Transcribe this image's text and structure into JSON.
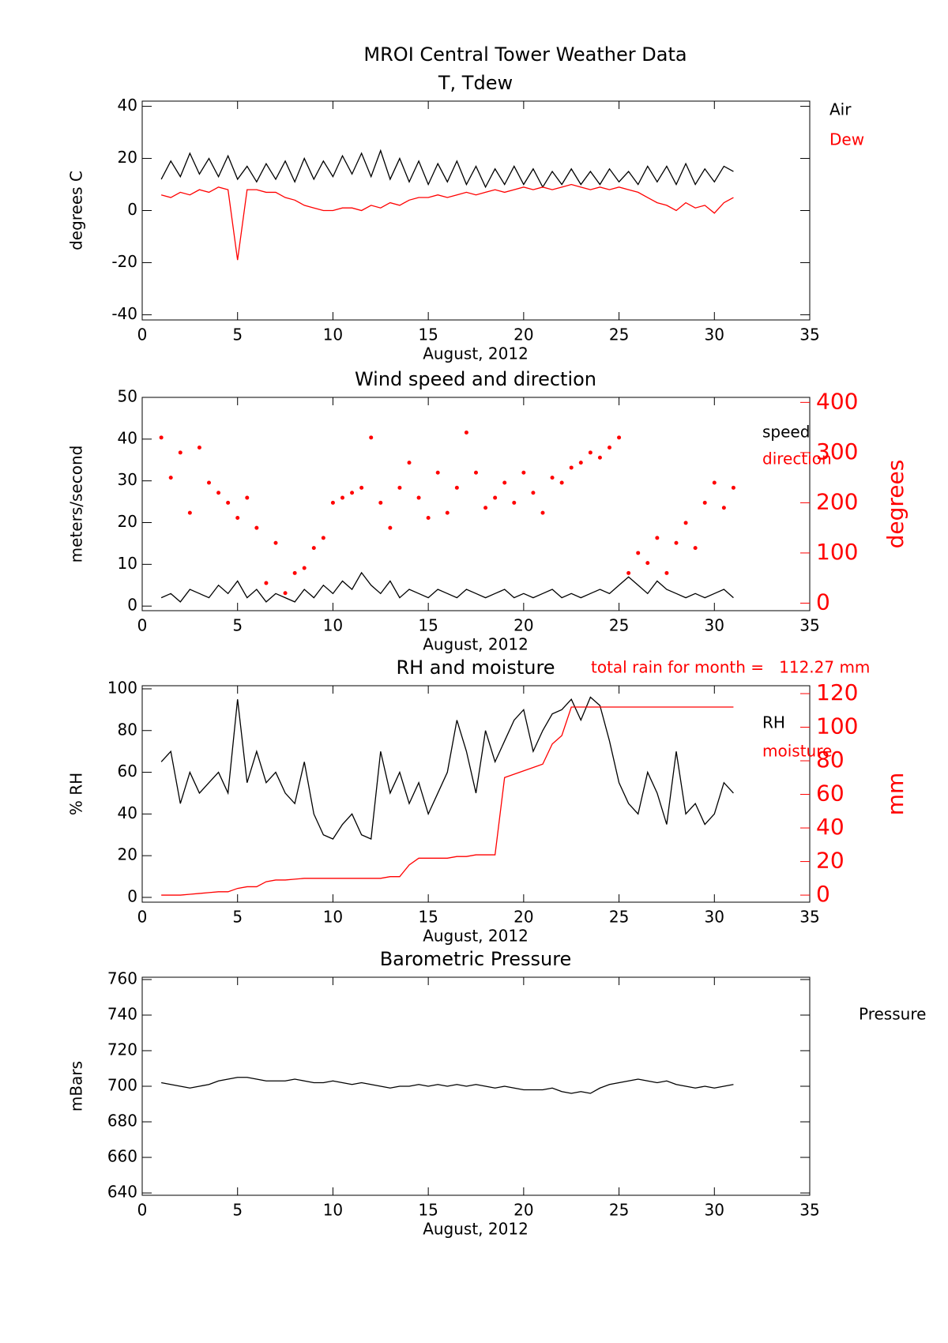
{
  "title": "MROI Central Tower Weather Data",
  "chart_data": [
    {
      "type": "line",
      "title": "T, Tdew",
      "xlabel": "August, 2012",
      "ylabel": "degrees C",
      "x": [
        1,
        1.5,
        2,
        2.5,
        3,
        3.5,
        4,
        4.5,
        5,
        5.5,
        6,
        6.5,
        7,
        7.5,
        8,
        8.5,
        9,
        9.5,
        10,
        10.5,
        11,
        11.5,
        12,
        12.5,
        13,
        13.5,
        14,
        14.5,
        15,
        15.5,
        16,
        16.5,
        17,
        17.5,
        18,
        18.5,
        19,
        19.5,
        20,
        20.5,
        21,
        21.5,
        22,
        22.5,
        23,
        23.5,
        24,
        24.5,
        25,
        25.5,
        26,
        26.5,
        27,
        27.5,
        28,
        28.5,
        29,
        29.5,
        30,
        30.5,
        31
      ],
      "xlim": [
        0,
        35
      ],
      "xticks": [
        0,
        5,
        10,
        15,
        20,
        25,
        30,
        35
      ],
      "ylim": [
        -42,
        42
      ],
      "yticks": [
        -40,
        -20,
        0,
        20,
        40
      ],
      "series": [
        {
          "name": "Air",
          "color": "#000000",
          "values": [
            12,
            19,
            13,
            22,
            14,
            20,
            13,
            21,
            12,
            17,
            11,
            18,
            12,
            19,
            11,
            20,
            12,
            19,
            13,
            21,
            14,
            22,
            13,
            23,
            12,
            20,
            11,
            19,
            10,
            18,
            11,
            19,
            10,
            17,
            9,
            16,
            10,
            17,
            10,
            16,
            9,
            15,
            10,
            16,
            10,
            15,
            10,
            16,
            11,
            15,
            10,
            17,
            11,
            17,
            10,
            18,
            10,
            16,
            11,
            17,
            15
          ]
        },
        {
          "name": "Dew",
          "color": "#ff0000",
          "values": [
            6,
            5,
            7,
            6,
            8,
            7,
            9,
            8,
            -19,
            8,
            8,
            7,
            7,
            5,
            4,
            2,
            1,
            0,
            0,
            1,
            1,
            0,
            2,
            1,
            3,
            2,
            4,
            5,
            5,
            6,
            5,
            6,
            7,
            6,
            7,
            8,
            7,
            8,
            9,
            8,
            9,
            8,
            9,
            10,
            9,
            8,
            9,
            8,
            9,
            8,
            7,
            5,
            3,
            2,
            0,
            3,
            1,
            2,
            -1,
            3,
            5
          ]
        }
      ]
    },
    {
      "type": "line",
      "title": "Wind speed and direction",
      "xlabel": "August, 2012",
      "ylabel": "meters/second",
      "y2label": "degrees",
      "x": [
        1,
        1.5,
        2,
        2.5,
        3,
        3.5,
        4,
        4.5,
        5,
        5.5,
        6,
        6.5,
        7,
        7.5,
        8,
        8.5,
        9,
        9.5,
        10,
        10.5,
        11,
        11.5,
        12,
        12.5,
        13,
        13.5,
        14,
        14.5,
        15,
        15.5,
        16,
        16.5,
        17,
        17.5,
        18,
        18.5,
        19,
        19.5,
        20,
        20.5,
        21,
        21.5,
        22,
        22.5,
        23,
        23.5,
        24,
        24.5,
        25,
        25.5,
        26,
        26.5,
        27,
        27.5,
        28,
        28.5,
        29,
        29.5,
        30,
        30.5,
        31
      ],
      "xlim": [
        0,
        35
      ],
      "xticks": [
        0,
        5,
        10,
        15,
        20,
        25,
        30,
        35
      ],
      "ylim": [
        -1.1,
        50
      ],
      "yticks": [
        0,
        10,
        20,
        30,
        40,
        50
      ],
      "y2lim": [
        -15,
        410
      ],
      "y2ticks": [
        0,
        100,
        200,
        300,
        400
      ],
      "y2color": "#ff0000",
      "series": [
        {
          "name": "speed",
          "color": "#000000",
          "values": [
            2,
            3,
            1,
            4,
            3,
            2,
            5,
            3,
            6,
            2,
            4,
            1,
            3,
            2,
            1,
            4,
            2,
            5,
            3,
            6,
            4,
            8,
            5,
            3,
            6,
            2,
            4,
            3,
            2,
            4,
            3,
            2,
            4,
            3,
            2,
            3,
            4,
            2,
            3,
            2,
            3,
            4,
            2,
            3,
            2,
            3,
            4,
            3,
            5,
            7,
            5,
            3,
            6,
            4,
            3,
            2,
            3,
            2,
            3,
            4,
            2
          ]
        },
        {
          "name": "direction",
          "color": "#ff0000",
          "axis": "y2",
          "marker": "dot",
          "values": [
            330,
            250,
            300,
            180,
            310,
            240,
            220,
            200,
            170,
            210,
            150,
            40,
            120,
            20,
            60,
            70,
            110,
            130,
            200,
            210,
            220,
            230,
            330,
            200,
            150,
            230,
            280,
            210,
            170,
            260,
            180,
            230,
            340,
            260,
            190,
            210,
            240,
            200,
            260,
            220,
            180,
            250,
            240,
            270,
            280,
            300,
            290,
            310,
            330,
            60,
            100,
            80,
            130,
            60,
            120,
            160,
            110,
            200,
            240,
            190,
            230
          ]
        }
      ]
    },
    {
      "type": "line",
      "title": "RH and moisture",
      "annotation": "total rain for month =   112.27 mm",
      "xlabel": "August, 2012",
      "ylabel": "% RH",
      "y2label": "mm",
      "x": [
        1,
        1.5,
        2,
        2.5,
        3,
        3.5,
        4,
        4.5,
        5,
        5.5,
        6,
        6.5,
        7,
        7.5,
        8,
        8.5,
        9,
        9.5,
        10,
        10.5,
        11,
        11.5,
        12,
        12.5,
        13,
        13.5,
        14,
        14.5,
        15,
        15.5,
        16,
        16.5,
        17,
        17.5,
        18,
        18.5,
        19,
        19.5,
        20,
        20.5,
        21,
        21.5,
        22,
        22.5,
        23,
        23.5,
        24,
        24.5,
        25,
        25.5,
        26,
        26.5,
        27,
        27.5,
        28,
        28.5,
        29,
        29.5,
        30,
        30.5,
        31
      ],
      "xlim": [
        0,
        35
      ],
      "xticks": [
        0,
        5,
        10,
        15,
        20,
        25,
        30,
        35
      ],
      "ylim": [
        -2.3,
        101.5
      ],
      "yticks": [
        0,
        20,
        40,
        60,
        80,
        100
      ],
      "y2lim": [
        -4.2,
        124.7
      ],
      "y2ticks": [
        0,
        20,
        40,
        60,
        80,
        100,
        120
      ],
      "y2color": "#ff0000",
      "series": [
        {
          "name": "RH",
          "color": "#000000",
          "values": [
            65,
            70,
            45,
            60,
            50,
            55,
            60,
            50,
            95,
            55,
            70,
            55,
            60,
            50,
            45,
            65,
            40,
            30,
            28,
            35,
            40,
            30,
            28,
            70,
            50,
            60,
            45,
            55,
            40,
            50,
            60,
            85,
            70,
            50,
            80,
            65,
            75,
            85,
            90,
            70,
            80,
            88,
            90,
            95,
            85,
            96,
            92,
            75,
            55,
            45,
            40,
            60,
            50,
            35,
            70,
            40,
            45,
            35,
            40,
            55,
            50
          ]
        },
        {
          "name": "moisture",
          "color": "#ff0000",
          "axis": "y2",
          "values": [
            0,
            0,
            0,
            0.5,
            1,
            1.5,
            2,
            2,
            4,
            5,
            5,
            8,
            9,
            9,
            9.5,
            10,
            10,
            10,
            10,
            10,
            10,
            10,
            10,
            10,
            11,
            11,
            18,
            22,
            22,
            22,
            22,
            23,
            23,
            24,
            24,
            24,
            70,
            72,
            74,
            76,
            78,
            90,
            95,
            112,
            112,
            112,
            112,
            112,
            112,
            112,
            112,
            112,
            112,
            112,
            112,
            112,
            112,
            112,
            112,
            112,
            112
          ]
        }
      ]
    },
    {
      "type": "line",
      "title": "Barometric Pressure",
      "xlabel": "August, 2012",
      "ylabel": "mBars",
      "x": [
        1,
        1.5,
        2,
        2.5,
        3,
        3.5,
        4,
        4.5,
        5,
        5.5,
        6,
        6.5,
        7,
        7.5,
        8,
        8.5,
        9,
        9.5,
        10,
        10.5,
        11,
        11.5,
        12,
        12.5,
        13,
        13.5,
        14,
        14.5,
        15,
        15.5,
        16,
        16.5,
        17,
        17.5,
        18,
        18.5,
        19,
        19.5,
        20,
        20.5,
        21,
        21.5,
        22,
        22.5,
        23,
        23.5,
        24,
        24.5,
        25,
        25.5,
        26,
        26.5,
        27,
        27.5,
        28,
        28.5,
        29,
        29.5,
        30,
        30.5,
        31
      ],
      "xlim": [
        0,
        35
      ],
      "xticks": [
        0,
        5,
        10,
        15,
        20,
        25,
        30,
        35
      ],
      "ylim": [
        638.7,
        761.3
      ],
      "yticks": [
        640,
        660,
        680,
        700,
        720,
        740,
        760
      ],
      "series": [
        {
          "name": "Pressure",
          "color": "#000000",
          "values": [
            702,
            701,
            700,
            699,
            700,
            701,
            703,
            704,
            705,
            705,
            704,
            703,
            703,
            703,
            704,
            703,
            702,
            702,
            703,
            702,
            701,
            702,
            701,
            700,
            699,
            700,
            700,
            701,
            700,
            701,
            700,
            701,
            700,
            701,
            700,
            699,
            700,
            699,
            698,
            698,
            698,
            699,
            697,
            696,
            697,
            696,
            699,
            701,
            702,
            703,
            704,
            703,
            702,
            703,
            701,
            700,
            699,
            700,
            699,
            700,
            701
          ]
        }
      ]
    }
  ]
}
